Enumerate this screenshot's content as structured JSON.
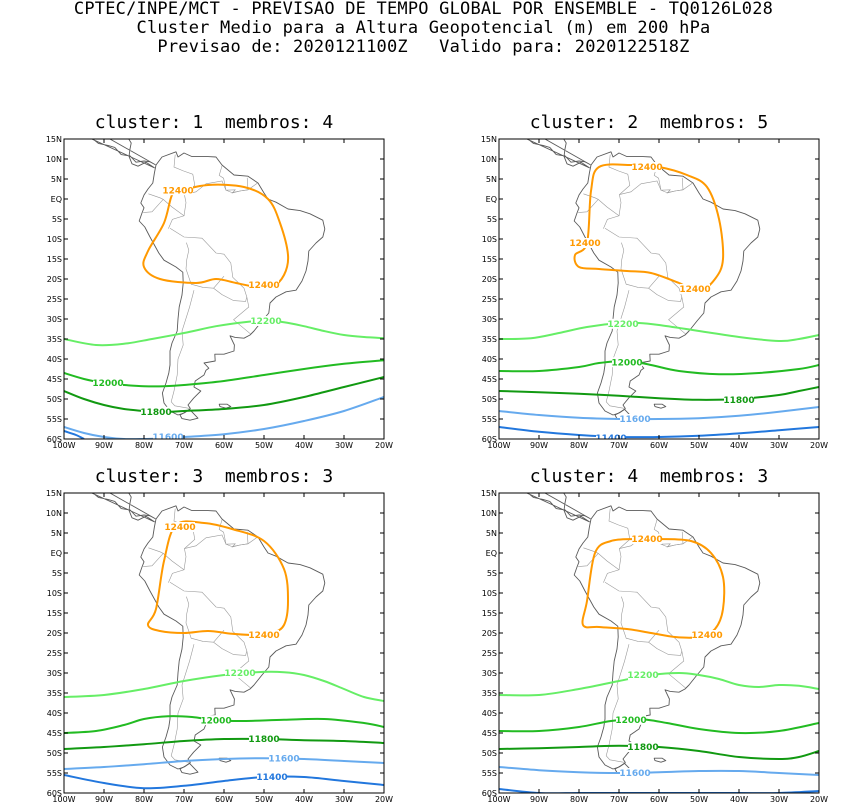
{
  "header": {
    "line1": "CPTEC/INPE/MCT - PREVISAO DE TEMPO GLOBAL POR ENSEMBLE - TQ0126L028",
    "line2": "Cluster Medio para a Altura Geopotencial (m) em 200 hPa",
    "line3": "Previsao de: 2020121100Z   Valido para: 2020122518Z"
  },
  "axes": {
    "lat_labels": [
      "15N",
      "10N",
      "5N",
      "EQ",
      "5S",
      "10S",
      "15S",
      "20S",
      "25S",
      "30S",
      "35S",
      "40S",
      "45S",
      "50S",
      "55S",
      "60S"
    ],
    "lat_values": [
      15,
      10,
      5,
      0,
      -5,
      -10,
      -15,
      -20,
      -25,
      -30,
      -35,
      -40,
      -45,
      -50,
      -55,
      -60
    ],
    "lon_labels": [
      "100W",
      "90W",
      "80W",
      "70W",
      "60W",
      "50W",
      "40W",
      "30W",
      "20W"
    ],
    "lon_values": [
      -100,
      -90,
      -80,
      -70,
      -60,
      -50,
      -40,
      -30,
      -20
    ],
    "lon_range": [
      -100,
      -20
    ],
    "lat_range": [
      -60,
      15
    ]
  },
  "colors": {
    "c12400": "#ff9900",
    "c12200": "#66ee66",
    "c12000": "#22bb22",
    "c11800": "#119911",
    "c11600": "#66aaee",
    "c11400": "#2277dd"
  },
  "panels": [
    {
      "title": "cluster: 1  membros: 4",
      "contours": [
        {
          "level": "12400",
          "color_key": "c12400",
          "closed": true,
          "lon": [
            -71,
            -64,
            -55,
            -49,
            -46,
            -44,
            -45,
            -48,
            -52,
            -57,
            -62,
            -67,
            -76,
            -80,
            -79,
            -75,
            -73
          ],
          "lat": [
            2,
            3.5,
            3,
            0,
            -6,
            -14,
            -19,
            -22,
            -22,
            -21,
            -20,
            -21,
            -20,
            -17,
            -13,
            -6,
            1
          ],
          "labels": [
            {
              "lon": -71.5,
              "lat": 2.2
            },
            {
              "lon": -50,
              "lat": -21.5
            }
          ]
        },
        {
          "level": "12200",
          "color_key": "c12200",
          "closed": false,
          "lon": [
            -100,
            -92,
            -85,
            -78,
            -70,
            -62,
            -55,
            -50,
            -45,
            -40,
            -35,
            -30,
            -25,
            -20
          ],
          "lat": [
            -35,
            -36.5,
            -36.2,
            -35,
            -33.5,
            -31.8,
            -30.8,
            -30.5,
            -30.8,
            -31.8,
            -33,
            -34,
            -34.5,
            -34.8
          ],
          "labels": [
            {
              "lon": -49.5,
              "lat": -30.5
            }
          ]
        },
        {
          "level": "12000",
          "color_key": "c12000",
          "closed": false,
          "lon": [
            -100,
            -95,
            -90,
            -85,
            -80,
            -75,
            -70,
            -60,
            -50,
            -40,
            -30,
            -20
          ],
          "lat": [
            -43.5,
            -45,
            -46,
            -46.5,
            -46.8,
            -46.8,
            -46.5,
            -45.5,
            -44,
            -42.5,
            -41.2,
            -40.3
          ],
          "labels": [
            {
              "lon": -89,
              "lat": -46
            }
          ]
        },
        {
          "level": "11800",
          "color_key": "c11800",
          "closed": false,
          "lon": [
            -100,
            -95,
            -90,
            -85,
            -80,
            -75,
            -70,
            -60,
            -50,
            -40,
            -30,
            -20
          ],
          "lat": [
            -48,
            -50,
            -51.5,
            -52.5,
            -53,
            -53.2,
            -53,
            -52.5,
            -51.5,
            -49.5,
            -47,
            -44.5
          ],
          "labels": [
            {
              "lon": -77,
              "lat": -53.2
            }
          ]
        },
        {
          "level": "11600",
          "color_key": "c11600",
          "closed": false,
          "lon": [
            -100,
            -95,
            -90,
            -85,
            -80,
            -75,
            -70,
            -60,
            -50,
            -40,
            -30,
            -20
          ],
          "lat": [
            -57,
            -58.5,
            -59.5,
            -60,
            -60,
            -59.8,
            -59.5,
            -58.8,
            -57.5,
            -55.5,
            -53,
            -49.5
          ],
          "labels": [
            {
              "lon": -74,
              "lat": -59.5
            }
          ]
        },
        {
          "level": "11400",
          "color_key": "c11400",
          "closed": false,
          "lon": [
            -100,
            -97,
            -95
          ],
          "lat": [
            -58,
            -59,
            -60
          ],
          "labels": []
        }
      ]
    },
    {
      "title": "cluster: 2  membros: 5",
      "contours": [
        {
          "level": "12400",
          "color_key": "c12400",
          "closed": true,
          "lon": [
            -75,
            -67,
            -60,
            -53,
            -48,
            -45,
            -44,
            -46,
            -50,
            -55,
            -62,
            -68,
            -75,
            -80,
            -81,
            -78,
            -77
          ],
          "lat": [
            8,
            8.5,
            8,
            6,
            3,
            -5,
            -15,
            -20,
            -23,
            -21,
            -18.5,
            -18,
            -17.5,
            -17,
            -14,
            -11,
            2
          ],
          "labels": [
            {
              "lon": -63,
              "lat": 8
            },
            {
              "lon": -78.5,
              "lat": -11
            },
            {
              "lon": -51,
              "lat": -22.5
            }
          ]
        },
        {
          "level": "12200",
          "color_key": "c12200",
          "closed": false,
          "lon": [
            -100,
            -92,
            -85,
            -78,
            -70,
            -65,
            -60,
            -50,
            -40,
            -30,
            -25,
            -20
          ],
          "lat": [
            -35,
            -34.8,
            -33.5,
            -32,
            -31,
            -31,
            -31.5,
            -33,
            -34.5,
            -35.5,
            -35,
            -34
          ],
          "labels": [
            {
              "lon": -69,
              "lat": -31.2
            }
          ]
        },
        {
          "level": "12000",
          "color_key": "c12000",
          "closed": false,
          "lon": [
            -100,
            -90,
            -80,
            -75,
            -68,
            -62,
            -55,
            -45,
            -35,
            -25,
            -20
          ],
          "lat": [
            -43,
            -43,
            -42,
            -41,
            -40.5,
            -41.5,
            -43,
            -43.8,
            -43.5,
            -42.5,
            -41.5
          ],
          "labels": [
            {
              "lon": -68,
              "lat": -40.8
            }
          ]
        },
        {
          "level": "11800",
          "color_key": "c11800",
          "closed": false,
          "lon": [
            -100,
            -90,
            -80,
            -70,
            -60,
            -50,
            -40,
            -30,
            -25,
            -20
          ],
          "lat": [
            -48,
            -48.3,
            -48.7,
            -49.2,
            -49.8,
            -50.2,
            -50,
            -49,
            -48,
            -47
          ],
          "labels": [
            {
              "lon": -40,
              "lat": -50.2
            }
          ]
        },
        {
          "level": "11600",
          "color_key": "c11600",
          "closed": false,
          "lon": [
            -100,
            -90,
            -80,
            -70,
            -60,
            -50,
            -40,
            -30,
            -20
          ],
          "lat": [
            -53,
            -54,
            -54.7,
            -55,
            -55,
            -54.8,
            -54.2,
            -53.2,
            -52
          ],
          "labels": [
            {
              "lon": -66,
              "lat": -55
            }
          ]
        },
        {
          "level": "11400",
          "color_key": "c11400",
          "closed": false,
          "lon": [
            -100,
            -90,
            -80,
            -70,
            -60,
            -50,
            -40,
            -30,
            -20
          ],
          "lat": [
            -57,
            -58.2,
            -59,
            -59.5,
            -59.5,
            -59.2,
            -58.6,
            -57.8,
            -57
          ],
          "labels": [
            {
              "lon": -72,
              "lat": -59.7
            }
          ]
        }
      ]
    },
    {
      "title": "cluster: 3  membros: 3",
      "contours": [
        {
          "level": "12400",
          "color_key": "c12400",
          "closed": true,
          "lon": [
            -72,
            -65,
            -58,
            -50,
            -45,
            -44,
            -45,
            -48,
            -52,
            -58,
            -64,
            -70,
            -76,
            -79,
            -77,
            -75
          ],
          "lat": [
            7,
            7.5,
            6,
            3,
            -4,
            -12,
            -18,
            -20,
            -20.5,
            -20.2,
            -19.5,
            -20,
            -19.5,
            -18,
            -14,
            -2
          ],
          "labels": [
            {
              "lon": -71,
              "lat": 6.5
            },
            {
              "lon": -50,
              "lat": -20.5
            }
          ]
        },
        {
          "level": "12200",
          "color_key": "c12200",
          "closed": false,
          "lon": [
            -100,
            -90,
            -80,
            -70,
            -60,
            -52,
            -45,
            -40,
            -35,
            -30,
            -25,
            -20
          ],
          "lat": [
            -36,
            -35.5,
            -34,
            -32,
            -30.5,
            -29.8,
            -29.8,
            -30.5,
            -32,
            -34,
            -36,
            -37
          ],
          "labels": [
            {
              "lon": -56,
              "lat": -30
            }
          ]
        },
        {
          "level": "12000",
          "color_key": "c12000",
          "closed": false,
          "lon": [
            -100,
            -92,
            -85,
            -80,
            -74,
            -68,
            -62,
            -55,
            -45,
            -35,
            -25,
            -20
          ],
          "lat": [
            -45,
            -44.5,
            -43,
            -41.5,
            -40.8,
            -41,
            -41.8,
            -42,
            -41.7,
            -41.5,
            -42.5,
            -43.5
          ],
          "labels": [
            {
              "lon": -62,
              "lat": -41.8
            }
          ]
        },
        {
          "level": "11800",
          "color_key": "c11800",
          "closed": false,
          "lon": [
            -100,
            -90,
            -80,
            -70,
            -60,
            -50,
            -40,
            -30,
            -20
          ],
          "lat": [
            -49,
            -48.5,
            -47.8,
            -47,
            -46.5,
            -46.5,
            -46.8,
            -47,
            -47.5
          ],
          "labels": [
            {
              "lon": -50,
              "lat": -46.5
            }
          ]
        },
        {
          "level": "11600",
          "color_key": "c11600",
          "closed": false,
          "lon": [
            -100,
            -90,
            -80,
            -70,
            -60,
            -50,
            -40,
            -30,
            -20
          ],
          "lat": [
            -54,
            -53.5,
            -52.8,
            -52,
            -51.5,
            -51.3,
            -51.5,
            -52,
            -52.5
          ],
          "labels": [
            {
              "lon": -45,
              "lat": -51.3
            }
          ]
        },
        {
          "level": "11400",
          "color_key": "c11400",
          "closed": false,
          "lon": [
            -100,
            -90,
            -80,
            -70,
            -60,
            -50,
            -40,
            -30,
            -20
          ],
          "lat": [
            -55.5,
            -57.5,
            -58.8,
            -58.2,
            -57,
            -56,
            -56,
            -57,
            -58
          ],
          "labels": [
            {
              "lon": -48,
              "lat": -56
            }
          ]
        }
      ]
    },
    {
      "title": "cluster: 4  membros: 3",
      "contours": [
        {
          "level": "12400",
          "color_key": "c12400",
          "closed": true,
          "lon": [
            -72,
            -66,
            -60,
            -52,
            -47,
            -44,
            -44,
            -46,
            -50,
            -56,
            -62,
            -68,
            -75,
            -79,
            -78,
            -76
          ],
          "lat": [
            3,
            3.5,
            3.5,
            3,
            0,
            -6,
            -14,
            -19,
            -21,
            -21,
            -20,
            -19,
            -18.5,
            -18,
            -12,
            0
          ],
          "labels": [
            {
              "lon": -63,
              "lat": 3.5
            },
            {
              "lon": -48,
              "lat": -20.5
            }
          ]
        },
        {
          "level": "12200",
          "color_key": "c12200",
          "closed": false,
          "lon": [
            -100,
            -90,
            -80,
            -70,
            -62,
            -55,
            -50,
            -45,
            -40,
            -35,
            -30,
            -25,
            -20
          ],
          "lat": [
            -35.5,
            -35.5,
            -34,
            -32,
            -30.5,
            -30,
            -30.5,
            -31.5,
            -33,
            -33.5,
            -33,
            -33.2,
            -34
          ],
          "labels": [
            {
              "lon": -64,
              "lat": -30.5
            }
          ]
        },
        {
          "level": "12000",
          "color_key": "c12000",
          "closed": false,
          "lon": [
            -100,
            -90,
            -80,
            -72,
            -65,
            -58,
            -50,
            -40,
            -30,
            -20
          ],
          "lat": [
            -44.5,
            -44.5,
            -43.5,
            -42,
            -41.5,
            -42.5,
            -44,
            -45,
            -44.5,
            -42.5
          ],
          "labels": [
            {
              "lon": -67,
              "lat": -41.7
            }
          ]
        },
        {
          "level": "11800",
          "color_key": "c11800",
          "closed": false,
          "lon": [
            -100,
            -90,
            -80,
            -70,
            -60,
            -50,
            -40,
            -30,
            -25,
            -20
          ],
          "lat": [
            -49,
            -48.8,
            -48.5,
            -48.2,
            -48.5,
            -49.5,
            -51,
            -51.5,
            -51,
            -49.5
          ],
          "labels": [
            {
              "lon": -64,
              "lat": -48.5
            }
          ]
        },
        {
          "level": "11600",
          "color_key": "c11600",
          "closed": false,
          "lon": [
            -100,
            -90,
            -80,
            -70,
            -60,
            -50,
            -40,
            -30,
            -20
          ],
          "lat": [
            -53.5,
            -54.3,
            -54.8,
            -55,
            -54.8,
            -54.5,
            -54.5,
            -55,
            -55.5
          ],
          "labels": [
            {
              "lon": -66,
              "lat": -55
            }
          ]
        },
        {
          "level": "11400",
          "color_key": "c11400",
          "closed": false,
          "lon": [
            -100,
            -90,
            -80,
            -70,
            -60,
            -50,
            -40,
            -30,
            -20
          ],
          "lat": [
            -59,
            -60,
            -60,
            -60,
            -60,
            -60,
            -60,
            -60,
            -59.5
          ],
          "labels": []
        }
      ]
    }
  ]
}
